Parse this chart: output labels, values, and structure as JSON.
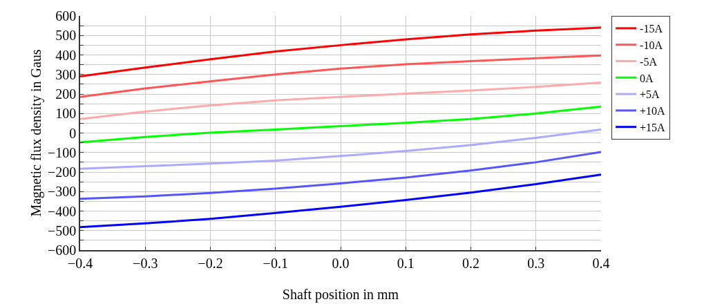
{
  "chart_data": {
    "type": "line",
    "xlabel": "Shaft position in mm",
    "ylabel": "Magnetic flux density in Gaus",
    "x": [
      -0.4,
      -0.3,
      -0.2,
      -0.1,
      0,
      0.1,
      0.2,
      0.3,
      0.4
    ],
    "series": [
      {
        "name": "-15A",
        "color": "#ff0000",
        "values": [
          290,
          335,
          378,
          418,
          450,
          480,
          505,
          525,
          540
        ]
      },
      {
        "name": "-10A",
        "color": "#ff5555",
        "values": [
          185,
          228,
          265,
          300,
          330,
          352,
          368,
          383,
          397
        ]
      },
      {
        "name": "-5A",
        "color": "#ffaaaa",
        "values": [
          72,
          110,
          142,
          167,
          185,
          202,
          218,
          236,
          258
        ]
      },
      {
        "name": "0A",
        "color": "#00ff00",
        "values": [
          -48,
          -20,
          2,
          18,
          35,
          52,
          72,
          100,
          135
        ]
      },
      {
        "name": "+5A",
        "color": "#aaaaff",
        "values": [
          -183,
          -170,
          -157,
          -142,
          -118,
          -92,
          -62,
          -25,
          18
        ]
      },
      {
        "name": "+10A",
        "color": "#5555ff",
        "values": [
          -337,
          -325,
          -307,
          -285,
          -258,
          -228,
          -192,
          -150,
          -97
        ]
      },
      {
        "name": "+15A",
        "color": "#0000ff",
        "values": [
          -482,
          -463,
          -440,
          -410,
          -378,
          -343,
          -305,
          -262,
          -213
        ]
      }
    ],
    "xlim": [
      -0.4,
      0.4
    ],
    "xticks": [
      {
        "value": -0.4,
        "label": "−0.4"
      },
      {
        "value": -0.3,
        "label": "−0.3"
      },
      {
        "value": -0.2,
        "label": "−0.2"
      },
      {
        "value": -0.1,
        "label": "−0.1"
      },
      {
        "value": 0,
        "label": "0.0"
      },
      0.1,
      0.2,
      0.3,
      0.4
    ],
    "ylim": [
      -600,
      600
    ],
    "yticks": [
      {
        "value": -600,
        "label": "−600"
      },
      {
        "value": -550,
        "label": null
      },
      {
        "value": -500,
        "label": "−500"
      },
      {
        "value": -450,
        "label": null
      },
      {
        "value": -400,
        "label": "−400"
      },
      {
        "value": -350,
        "label": null
      },
      {
        "value": -300,
        "label": "−300"
      },
      {
        "value": -250,
        "label": null
      },
      {
        "value": -200,
        "label": "−200"
      },
      {
        "value": -150,
        "label": null
      },
      {
        "value": -100,
        "label": "−100"
      },
      {
        "value": -50,
        "label": null
      },
      0,
      {
        "value": 50,
        "label": null
      },
      100,
      {
        "value": 150,
        "label": null
      },
      200,
      {
        "value": 250,
        "label": null
      },
      300,
      {
        "value": 350,
        "label": null
      },
      400,
      {
        "value": 450,
        "label": null
      },
      500,
      {
        "value": 550,
        "label": null
      },
      600
    ],
    "grid": true,
    "legend": "top right",
    "marker": "none",
    "line_style": "solid"
  }
}
